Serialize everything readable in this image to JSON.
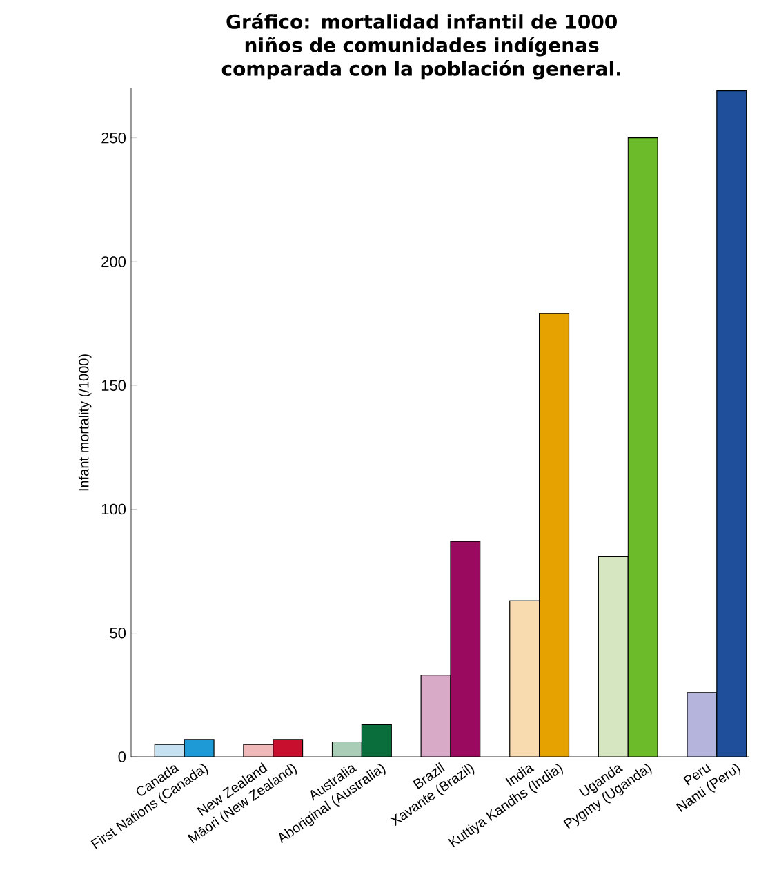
{
  "chart_data": {
    "type": "bar",
    "title": "Gráfico: mortalidad infantil de 1000 niños de comunidades indígenas comparada con la población general.",
    "ylabel": "Infant mortality (/1000)",
    "categories": [
      "Canada",
      "First Nations (Canada)",
      "New Zealand",
      "Māori (New Zealand)",
      "Australia",
      "Aboriginal (Australia)",
      "Brazil",
      "Xavante (Brazil)",
      "India",
      "Kuttiya Kandhs (India)",
      "Uganda",
      "Pygmy (Uganda)",
      "Peru",
      "Nanti (Peru)"
    ],
    "values": [
      5,
      7,
      5,
      7,
      6,
      13,
      33,
      87,
      63,
      179,
      81,
      250,
      26,
      269
    ],
    "colors": [
      "#c6e2f2",
      "#1e9bd7",
      "#f0b8b8",
      "#c8102e",
      "#a9cdb6",
      "#0a6e3c",
      "#d8aac8",
      "#9a0a5e",
      "#f8dcb0",
      "#e6a200",
      "#d6e6c0",
      "#6cbb2a",
      "#b4b4dc",
      "#1f4f9a"
    ],
    "ylim": [
      0,
      270
    ],
    "yticks": [
      0,
      50,
      100,
      150,
      200,
      250
    ],
    "grid": false
  }
}
